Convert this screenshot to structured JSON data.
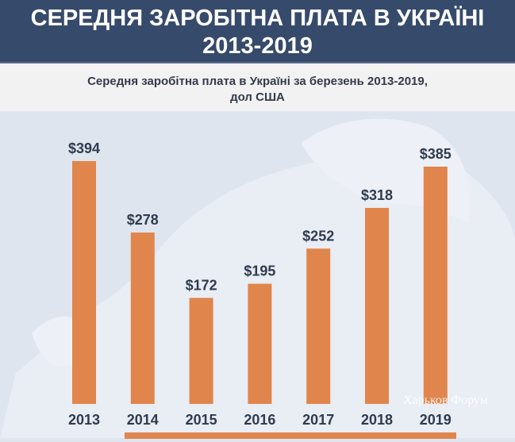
{
  "header": {
    "title_line1": "СЕРЕДНЯ ЗАРОБІТНА ПЛАТА В УКРАЇНІ",
    "title_line2": "2013-2019"
  },
  "watermark": "Харьков Форум",
  "chart_data": {
    "type": "bar",
    "title": "Середня заробітна плата в Україні за березень 2013-2019,",
    "title_line2": "дол США",
    "categories": [
      "2013",
      "2014",
      "2015",
      "2016",
      "2017",
      "2018",
      "2019"
    ],
    "values": [
      394,
      278,
      172,
      195,
      252,
      318,
      385
    ],
    "labels": [
      "$394",
      "$278",
      "$172",
      "$195",
      "$252",
      "$318",
      "$385"
    ],
    "xlabel": "",
    "ylabel": "",
    "ylim": [
      0,
      394
    ],
    "bar_color": "#e0854c"
  }
}
